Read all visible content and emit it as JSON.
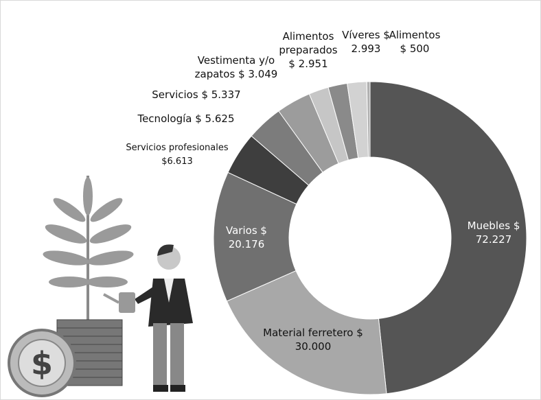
{
  "chart_data": {
    "type": "donut",
    "categories": [
      "Muebles",
      "Material ferretero",
      "Varios",
      "Servicios profesionales",
      "Tecnología",
      "Servicios",
      "Vestimenta y/o zapatos",
      "Alimentos preparados",
      "Víveres",
      "Alimentos"
    ],
    "values": [
      72227,
      30000,
      20176,
      6613,
      5625,
      5337,
      3049,
      2951,
      2993,
      500
    ],
    "value_labels": [
      "$ 72.227",
      "$ 30.000",
      "$ 20.176",
      "$6.613",
      "$ 5.625",
      "$ 5.337",
      "$ 3.049",
      "$ 2.951",
      "$ 2.993",
      "$ 500"
    ],
    "colors": [
      "#555555",
      "#a8a8a8",
      "#707070",
      "#3e3e3e",
      "#7c7c7c",
      "#9c9c9c",
      "#c6c6c6",
      "#8a8a8a",
      "#d2d2d2",
      "#b0b0b0"
    ]
  }
}
